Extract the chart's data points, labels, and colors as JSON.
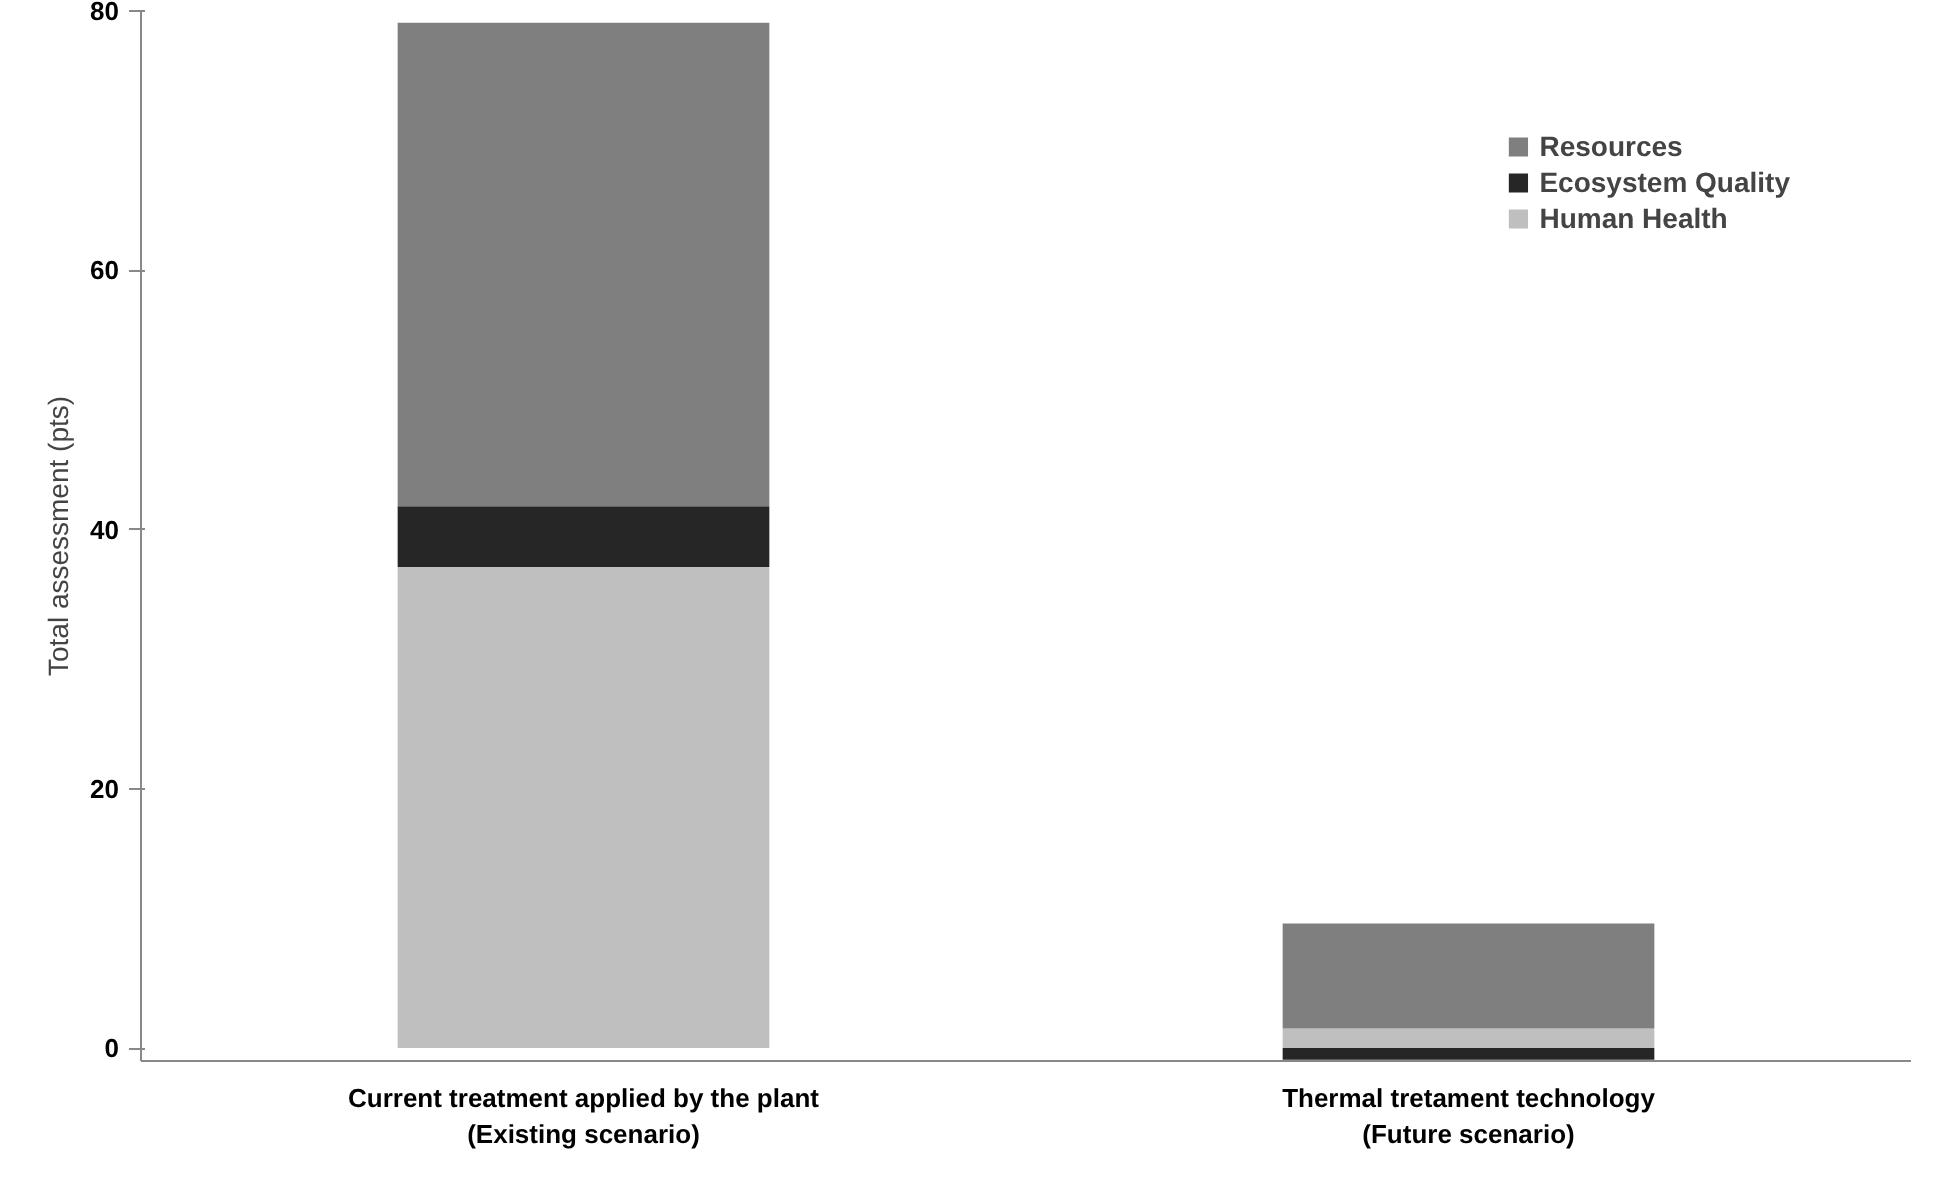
{
  "chart_data": {
    "type": "bar",
    "stacked": true,
    "ylabel": "Total assessment (pts)",
    "categories": [
      "Current treatment applied by the plant\n(Existing scenario)",
      "Thermal tretament technology\n(Future scenario)"
    ],
    "series": [
      {
        "name": "Human Health",
        "color": "#bfbfbf",
        "values": [
          37.1,
          1.5
        ]
      },
      {
        "name": "Ecosystem Quality",
        "color": "#262626",
        "values": [
          4.7,
          -0.9
        ]
      },
      {
        "name": "Resources",
        "color": "#7f7f7f",
        "values": [
          37.3,
          8.1
        ]
      }
    ],
    "ylim": [
      -1,
      80
    ],
    "yticks": [
      0,
      20,
      40,
      60,
      80
    ],
    "grid": false,
    "legend": "top right"
  }
}
